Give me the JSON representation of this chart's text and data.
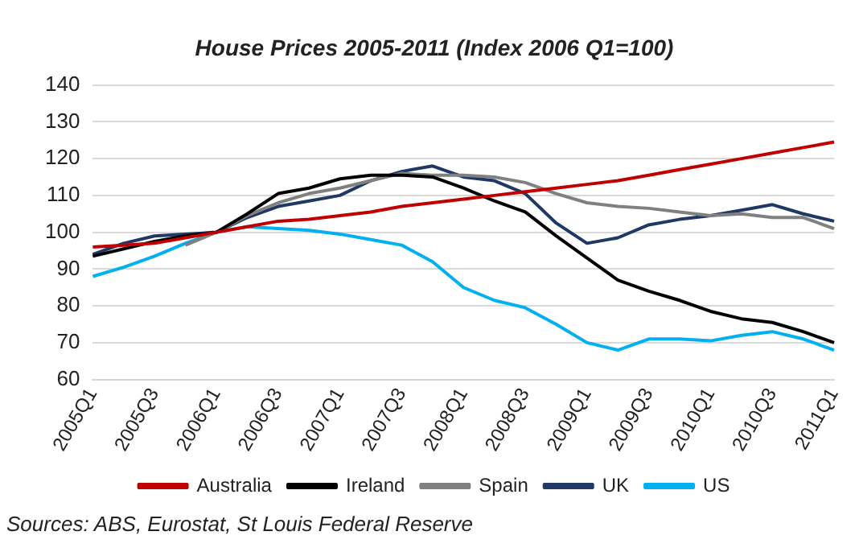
{
  "chart_data": {
    "type": "line",
    "title": "House Prices 2005-2011 (Index 2006 Q1=100)",
    "categories": [
      "2005Q1",
      null,
      "2005Q3",
      null,
      "2006Q1",
      null,
      "2006Q3",
      null,
      "2007Q1",
      null,
      "2007Q3",
      null,
      "2008Q1",
      null,
      "2008Q3",
      null,
      "2009Q1",
      null,
      "2009Q3",
      null,
      "2010Q1",
      null,
      "2010Q3",
      null,
      "2011Q1"
    ],
    "series": [
      {
        "name": "Australia",
        "color": "#c00000",
        "values": [
          96,
          96.5,
          97,
          98.5,
          100,
          101.5,
          103,
          103.5,
          104.5,
          105.5,
          107,
          108,
          109,
          110,
          111,
          112,
          113,
          114,
          115.5,
          117,
          118.5,
          120,
          121.5,
          123,
          124.5
        ]
      },
      {
        "name": "Ireland",
        "color": "#000000",
        "values": [
          93.5,
          95.5,
          97.5,
          99,
          100,
          105,
          110.5,
          112,
          114.5,
          115.5,
          115.5,
          115,
          112,
          108.5,
          105.5,
          99,
          93,
          87,
          84,
          81.5,
          78.5,
          76.5,
          75.5,
          73,
          70
        ]
      },
      {
        "name": "Spain",
        "color": "#808080",
        "values": [
          null,
          null,
          null,
          96.5,
          100,
          104.5,
          108,
          110.5,
          112,
          114,
          116,
          115.5,
          115.5,
          115,
          113.5,
          110.5,
          108,
          107,
          106.5,
          105.5,
          104.5,
          105,
          104,
          104,
          101
        ]
      },
      {
        "name": "UK",
        "color": "#1f3864",
        "values": [
          94,
          97,
          99,
          99.5,
          100,
          104,
          107,
          108.5,
          110,
          114,
          116.5,
          118,
          115,
          114,
          110.5,
          102.5,
          97,
          98.5,
          102,
          103.5,
          104.5,
          106,
          107.5,
          105,
          103
        ]
      },
      {
        "name": "US",
        "color": "#00b0f0",
        "values": [
          88,
          90.5,
          93.5,
          97,
          100,
          101.5,
          101,
          100.5,
          99.5,
          98,
          96.5,
          92,
          85,
          81.5,
          79.5,
          75,
          70,
          68,
          71,
          71,
          70.5,
          72,
          73,
          71,
          68
        ]
      }
    ],
    "ylim": [
      60,
      140
    ],
    "yticks": [
      60,
      70,
      80,
      90,
      100,
      110,
      120,
      130,
      140
    ],
    "grid": "y",
    "legend": "bottom",
    "annotations": [
      "Sources: ABS, Eurostat, St Louis Federal Reserve"
    ]
  }
}
